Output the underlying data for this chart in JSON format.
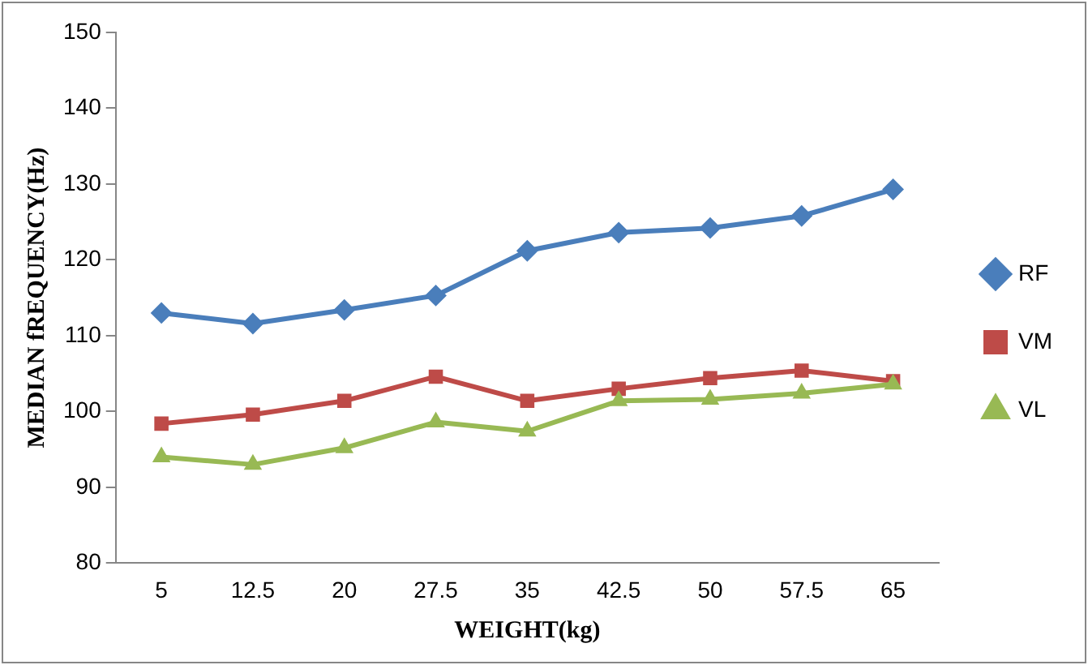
{
  "chart_data": {
    "type": "line",
    "xlabel": "WEIGHT(kg)",
    "ylabel": "MEDIAN fREQUENCY(Hz)",
    "categories": [
      "5",
      "12.5",
      "20",
      "27.5",
      "35",
      "42.5",
      "50",
      "57.5",
      "65"
    ],
    "series": [
      {
        "name": "RF",
        "color": "#4a7ebb",
        "marker": "diamond",
        "values": [
          113,
          111.6,
          113.4,
          115.3,
          121.2,
          123.6,
          124.2,
          125.8,
          129.3
        ]
      },
      {
        "name": "VM",
        "color": "#be4b48",
        "marker": "square",
        "values": [
          98.4,
          99.6,
          101.4,
          104.6,
          101.4,
          103,
          104.4,
          105.4,
          104
        ]
      },
      {
        "name": "VL",
        "color": "#98b954",
        "marker": "triangle",
        "values": [
          94,
          93,
          95.2,
          98.6,
          97.4,
          101.4,
          101.6,
          102.4,
          103.6
        ]
      }
    ],
    "ylim": [
      80,
      150
    ],
    "yticks": [
      80,
      90,
      100,
      110,
      120,
      130,
      140,
      150
    ],
    "grid": false,
    "legend": "right"
  }
}
